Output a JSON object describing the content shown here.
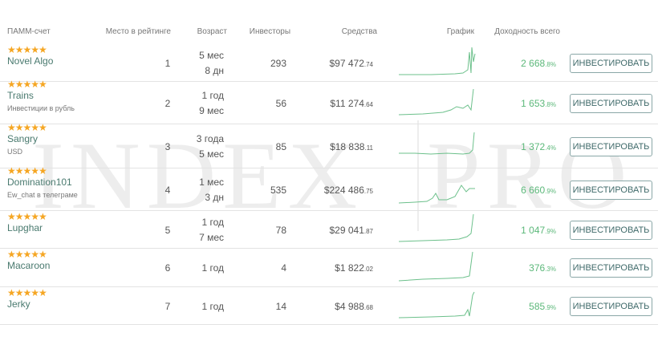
{
  "header": [
    "ПАММ-счет",
    "Место в рейтинге",
    "Возраст",
    "Инвесторы",
    "Средства",
    "График",
    "Доходность всего"
  ],
  "watermark": [
    "INDEX",
    "PRO"
  ],
  "rows": [
    {
      "name": "Novel Algo",
      "sub": null,
      "rank": "1",
      "age": [
        "5 мес",
        "8 дн"
      ],
      "investors": "293",
      "funds": "$97 472",
      "funds_cents": ".74",
      "ret": "2 668",
      "ret_small": ".8%",
      "button": "ИНВЕСТИРОВАТЬ"
    },
    {
      "name": "Trains",
      "sub": "Инвестиции в рубль",
      "rank": "2",
      "age": [
        "1 год",
        "9 мес"
      ],
      "investors": "56",
      "funds": "$11 274",
      "funds_cents": ".64",
      "ret": "1 653",
      "ret_small": ".8%",
      "button": "ИНВЕСТИРОВАТЬ"
    },
    {
      "name": "Sangry",
      "sub": "USD",
      "rank": "3",
      "age": [
        "3 года",
        "5 мес"
      ],
      "investors": "85",
      "funds": "$18 838",
      "funds_cents": ".11",
      "ret": "1 372",
      "ret_small": ".4%",
      "button": "ИНВЕСТИРОВАТЬ"
    },
    {
      "name": "Domination101",
      "sub": "Ew_chat в телеграме",
      "rank": "4",
      "age": [
        "1 мес",
        "3 дн"
      ],
      "investors": "535",
      "funds": "$224 486",
      "funds_cents": ".75",
      "ret": "6 660",
      "ret_small": ".9%",
      "button": "ИНВЕСТИРОВАТЬ"
    },
    {
      "name": "Lupghar",
      "sub": null,
      "rank": "5",
      "age": [
        "1 год",
        "7 мес"
      ],
      "investors": "78",
      "funds": "$29 041",
      "funds_cents": ".87",
      "ret": "1 047",
      "ret_small": ".9%",
      "button": "ИНВЕСТИРОВАТЬ"
    },
    {
      "name": "Macaroon",
      "sub": null,
      "rank": "6",
      "age": [
        "1 год"
      ],
      "investors": "4",
      "funds": "$1 822",
      "funds_cents": ".02",
      "ret": "376",
      "ret_small": ".3%",
      "button": "ИНВЕСТИРОВАТЬ"
    },
    {
      "name": "Jerky",
      "sub": null,
      "rank": "7",
      "age": [
        "1 год"
      ],
      "investors": "14",
      "funds": "$4 988",
      "funds_cents": ".68",
      "ret": "585",
      "ret_small": ".9%",
      "button": "ИНВЕСТИРОВАТЬ"
    }
  ]
}
